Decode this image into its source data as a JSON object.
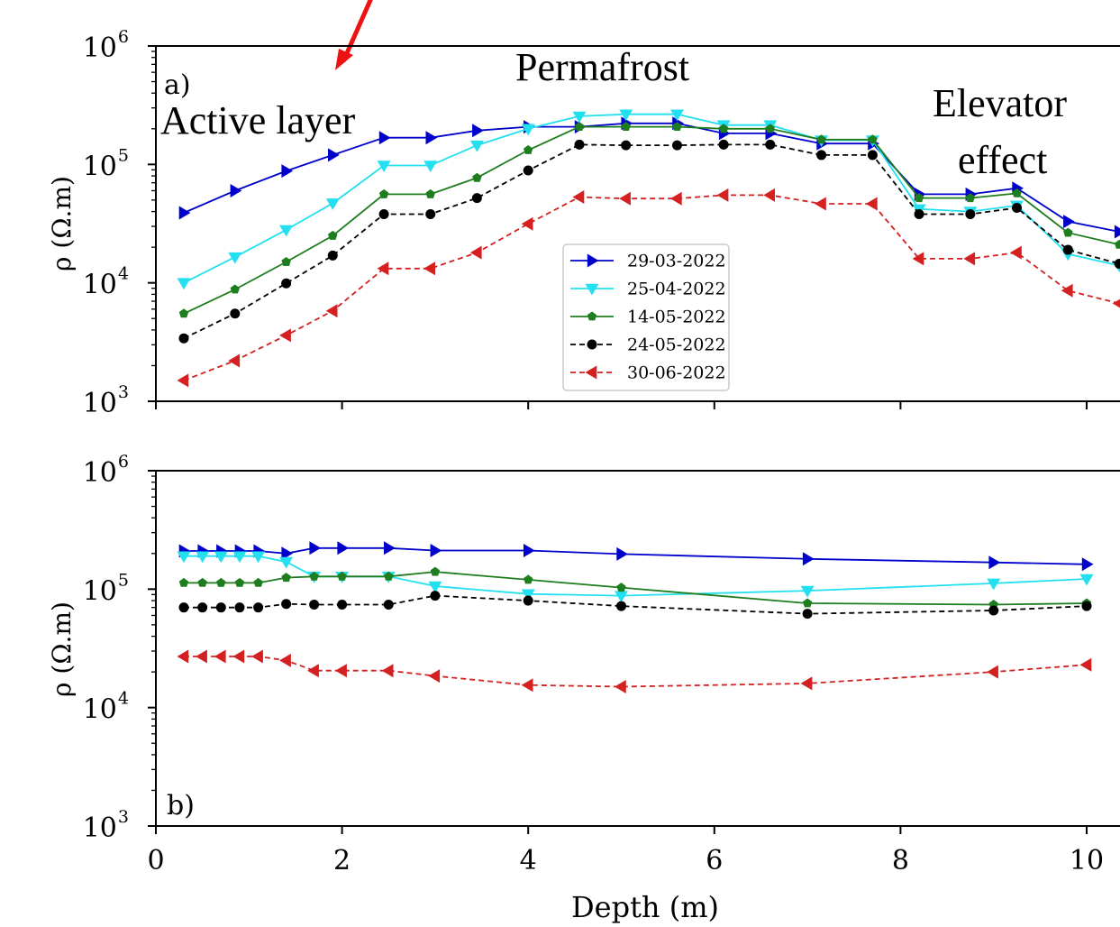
{
  "chart_data": [
    {
      "type": "line",
      "panel_label": "a)",
      "ylabel": "ρ (Ω.m)",
      "y_scale": "log",
      "ylim": [
        1000,
        1000000
      ],
      "y_ticks": [
        "10^3",
        "10^4",
        "10^5",
        "10^6"
      ],
      "xlim": [
        0,
        10.35
      ],
      "annotations": [
        "Active layer",
        "Permafrost",
        "Elevator",
        "effect"
      ],
      "legend_position": "center",
      "series": [
        {
          "name": "29-03-2022",
          "color": "#0000cc",
          "marker": "triangle-right",
          "linestyle": "solid",
          "x": [
            0.3,
            0.85,
            1.4,
            1.9,
            2.45,
            2.95,
            3.45,
            4.0,
            4.55,
            5.05,
            5.6,
            6.1,
            6.6,
            7.15,
            7.7,
            8.2,
            8.75,
            9.25,
            9.8,
            10.35
          ],
          "y": [
            39000,
            60000,
            88000,
            120000,
            168000,
            168000,
            193000,
            208000,
            208000,
            222000,
            222000,
            183000,
            183000,
            150000,
            150000,
            56000,
            56000,
            63000,
            33000,
            27000
          ]
        },
        {
          "name": "25-04-2022",
          "color": "#22e0f0",
          "marker": "triangle-down",
          "linestyle": "solid",
          "x": [
            0.3,
            0.85,
            1.4,
            1.9,
            2.45,
            2.95,
            3.45,
            4.0,
            4.55,
            5.05,
            5.6,
            6.1,
            6.6,
            7.15,
            7.7,
            8.2,
            8.75,
            9.25,
            9.8,
            10.35
          ],
          "y": [
            10000,
            16500,
            28000,
            47000,
            98000,
            98000,
            145000,
            200000,
            255000,
            265000,
            265000,
            215000,
            215000,
            160000,
            160000,
            42000,
            40000,
            45000,
            17500,
            14000
          ]
        },
        {
          "name": "14-05-2022",
          "color": "#1e7d1e",
          "marker": "pentagon",
          "linestyle": "solid",
          "x": [
            0.3,
            0.85,
            1.4,
            1.9,
            2.45,
            2.95,
            3.45,
            4.0,
            4.55,
            5.05,
            5.6,
            6.1,
            6.6,
            7.15,
            7.7,
            8.2,
            8.75,
            9.25,
            9.8,
            10.35
          ],
          "y": [
            5500,
            8800,
            15000,
            25000,
            56000,
            56000,
            77000,
            132000,
            208000,
            208000,
            208000,
            200000,
            200000,
            162000,
            162000,
            52000,
            52000,
            57000,
            26500,
            21000
          ]
        },
        {
          "name": "24-05-2022",
          "color": "#000000",
          "marker": "circle",
          "linestyle": "dashed",
          "x": [
            0.3,
            0.85,
            1.4,
            1.9,
            2.45,
            2.95,
            3.45,
            4.0,
            4.55,
            5.05,
            5.6,
            6.1,
            6.6,
            7.15,
            7.7,
            8.2,
            8.75,
            9.25,
            9.8,
            10.35
          ],
          "y": [
            3400,
            5500,
            9900,
            17000,
            38000,
            38000,
            52000,
            89000,
            147000,
            145000,
            145000,
            147000,
            147000,
            120000,
            120000,
            38000,
            38000,
            43000,
            19000,
            14500
          ]
        },
        {
          "name": "30-06-2022",
          "color": "#d42020",
          "marker": "triangle-left",
          "linestyle": "dashed",
          "x": [
            0.3,
            0.85,
            1.4,
            1.9,
            2.45,
            2.95,
            3.45,
            4.0,
            4.55,
            5.05,
            5.6,
            6.1,
            6.6,
            7.15,
            7.7,
            8.2,
            8.75,
            9.25,
            9.8,
            10.35
          ],
          "y": [
            1500,
            2200,
            3600,
            5800,
            13200,
            13200,
            18000,
            31500,
            53000,
            51500,
            51500,
            55000,
            55000,
            46500,
            46500,
            16000,
            16000,
            18000,
            8600,
            6700
          ]
        }
      ]
    },
    {
      "type": "line",
      "panel_label": "b)",
      "xlabel": "Depth (m)",
      "ylabel": "ρ (Ω.m)",
      "y_scale": "log",
      "ylim": [
        1000,
        1000000
      ],
      "y_ticks": [
        "10^3",
        "10^4",
        "10^5",
        "10^6"
      ],
      "xlim": [
        0,
        10.35
      ],
      "x_ticks": [
        0,
        2,
        4,
        6,
        8,
        10
      ],
      "series": [
        {
          "name": "29-03-2022",
          "color": "#0000cc",
          "marker": "triangle-right",
          "linestyle": "solid",
          "x": [
            0.3,
            0.5,
            0.7,
            0.9,
            1.1,
            1.4,
            1.7,
            2.0,
            2.5,
            3.0,
            4.0,
            5.0,
            7.0,
            9.0,
            10.0
          ],
          "y": [
            210000,
            210000,
            210000,
            210000,
            210000,
            200000,
            222000,
            222000,
            222000,
            212000,
            212000,
            198000,
            180000,
            168000,
            162000
          ]
        },
        {
          "name": "25-04-2022",
          "color": "#22e0f0",
          "marker": "triangle-down",
          "linestyle": "solid",
          "x": [
            0.3,
            0.5,
            0.7,
            0.9,
            1.1,
            1.4,
            1.7,
            2.0,
            2.5,
            3.0,
            4.0,
            5.0,
            7.0,
            9.0,
            10.0
          ],
          "y": [
            190000,
            190000,
            190000,
            190000,
            190000,
            170000,
            128000,
            128000,
            128000,
            106000,
            91000,
            88000,
            97000,
            112000,
            122000
          ]
        },
        {
          "name": "14-05-2022",
          "color": "#1e7d1e",
          "marker": "pentagon",
          "linestyle": "solid",
          "x": [
            0.3,
            0.5,
            0.7,
            0.9,
            1.1,
            1.4,
            1.7,
            2.0,
            2.5,
            3.0,
            4.0,
            5.0,
            7.0,
            9.0,
            10.0
          ],
          "y": [
            113000,
            113000,
            113000,
            113000,
            113000,
            125000,
            128000,
            128000,
            128000,
            140000,
            120000,
            103000,
            76000,
            74000,
            76000
          ]
        },
        {
          "name": "24-05-2022",
          "color": "#000000",
          "marker": "circle",
          "linestyle": "dashed",
          "x": [
            0.3,
            0.5,
            0.7,
            0.9,
            1.1,
            1.4,
            1.7,
            2.0,
            2.5,
            3.0,
            4.0,
            5.0,
            7.0,
            9.0,
            10.0
          ],
          "y": [
            70000,
            70000,
            70000,
            70000,
            70000,
            75000,
            74000,
            74000,
            74000,
            88000,
            80000,
            72000,
            62000,
            66000,
            72000
          ]
        },
        {
          "name": "30-06-2022",
          "color": "#d42020",
          "marker": "triangle-left",
          "linestyle": "dashed",
          "x": [
            0.3,
            0.5,
            0.7,
            0.9,
            1.1,
            1.4,
            1.7,
            2.0,
            2.5,
            3.0,
            4.0,
            5.0,
            7.0,
            9.0,
            10.0
          ],
          "y": [
            27000,
            27000,
            27000,
            27000,
            27000,
            25000,
            20500,
            20500,
            20500,
            18500,
            15500,
            15000,
            16000,
            20000,
            23000
          ]
        }
      ]
    }
  ]
}
